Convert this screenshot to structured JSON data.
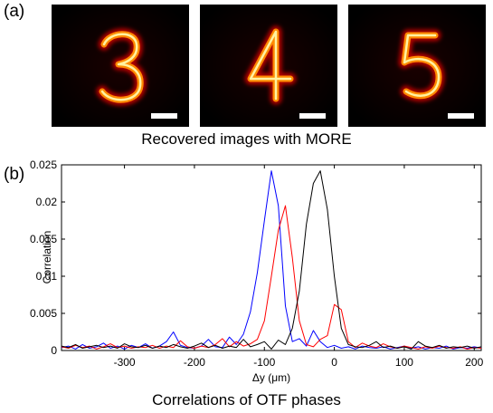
{
  "panel_a": {
    "label": "(a)",
    "images": [
      {
        "digit": "3",
        "scale_bar": true
      },
      {
        "digit": "4",
        "scale_bar": true
      },
      {
        "digit": "5",
        "scale_bar": true
      }
    ],
    "caption": "Recovered images with MORE"
  },
  "panel_b": {
    "label": "(b)",
    "caption": "Correlations of OTF phases"
  },
  "chart_data": {
    "type": "line",
    "xlabel": "Δy (μm)",
    "ylabel": "Correlation",
    "xlim": [
      -390,
      210
    ],
    "ylim": [
      0,
      0.025
    ],
    "x_ticks": [
      -300,
      -200,
      -100,
      0,
      100,
      200
    ],
    "y_ticks": [
      0,
      0.005,
      0.01,
      0.015,
      0.02,
      0.025
    ],
    "y_tick_labels": [
      "0",
      "0.005",
      "0.01",
      "0.015",
      "0.02",
      "0.025"
    ],
    "grid": false,
    "series": [
      {
        "color": "#0000ff",
        "x": [
          -390,
          -380,
          -370,
          -360,
          -350,
          -340,
          -330,
          -320,
          -310,
          -300,
          -290,
          -280,
          -270,
          -260,
          -250,
          -240,
          -230,
          -220,
          -210,
          -200,
          -190,
          -180,
          -170,
          -160,
          -150,
          -140,
          -130,
          -120,
          -110,
          -100,
          -90,
          -80,
          -70,
          -60,
          -50,
          -40,
          -30,
          -20,
          -10,
          0,
          10,
          20,
          30,
          40,
          50,
          60,
          70,
          80,
          90,
          100,
          110,
          120,
          130,
          140,
          150,
          160,
          170,
          180,
          190,
          200,
          210
        ],
        "y": [
          0.0004,
          0.0006,
          0.0002,
          0.0008,
          0.0003,
          0.0005,
          0.001,
          0.0003,
          0.0006,
          0.0002,
          0.0007,
          0.0004,
          0.0009,
          0.0003,
          0.0006,
          0.0012,
          0.0025,
          0.0007,
          0.0004,
          0.0003,
          0.0006,
          0.0015,
          0.0005,
          0.0004,
          0.0018,
          0.0008,
          0.0022,
          0.0052,
          0.0105,
          0.0175,
          0.0242,
          0.0195,
          0.006,
          0.0012,
          0.0016,
          0.0006,
          0.0027,
          0.0012,
          0.0004,
          0.0007,
          0.0003,
          0.0005,
          0.0002,
          0.0006,
          0.0004,
          0.0003,
          0.0005,
          0.0002,
          0.0004,
          0.0006,
          0.0003,
          0.0005,
          0.0002,
          0.0004,
          0.0003,
          0.0006,
          0.0002,
          0.0004,
          0.0003,
          0.0005,
          0.0003
        ]
      },
      {
        "color": "#ff0000",
        "x": [
          -390,
          -380,
          -370,
          -360,
          -350,
          -340,
          -330,
          -320,
          -310,
          -300,
          -290,
          -280,
          -270,
          -260,
          -250,
          -240,
          -230,
          -220,
          -210,
          -200,
          -190,
          -180,
          -170,
          -160,
          -150,
          -140,
          -130,
          -120,
          -110,
          -100,
          -90,
          -80,
          -70,
          -60,
          -50,
          -40,
          -30,
          -20,
          -10,
          0,
          10,
          20,
          30,
          40,
          50,
          60,
          70,
          80,
          90,
          100,
          110,
          120,
          130,
          140,
          150,
          160,
          170,
          180,
          190,
          200,
          210
        ],
        "y": [
          0.0005,
          0.0003,
          0.0007,
          0.0004,
          0.0006,
          0.0002,
          0.0005,
          0.0009,
          0.0004,
          0.0006,
          0.0003,
          0.0005,
          0.0004,
          0.0007,
          0.0003,
          0.0006,
          0.0004,
          0.0013,
          0.0005,
          0.0003,
          0.0006,
          0.0004,
          0.0008,
          0.0016,
          0.0005,
          0.0012,
          0.0006,
          0.0009,
          0.0015,
          0.004,
          0.01,
          0.0162,
          0.0195,
          0.0125,
          0.004,
          0.0008,
          0.0005,
          0.0015,
          0.002,
          0.0062,
          0.0055,
          0.0012,
          0.0004,
          0.001,
          0.0006,
          0.0004,
          0.0009,
          0.0005,
          0.0003,
          0.0006,
          0.0004,
          0.0002,
          0.0005,
          0.0003,
          0.0006,
          0.0004,
          0.0003,
          0.0005,
          0.0002,
          0.0004,
          0.0003
        ]
      },
      {
        "color": "#000000",
        "x": [
          -390,
          -380,
          -370,
          -360,
          -350,
          -340,
          -330,
          -320,
          -310,
          -300,
          -290,
          -280,
          -270,
          -260,
          -250,
          -240,
          -230,
          -220,
          -210,
          -200,
          -190,
          -180,
          -170,
          -160,
          -150,
          -140,
          -130,
          -120,
          -110,
          -100,
          -90,
          -80,
          -70,
          -60,
          -50,
          -40,
          -30,
          -20,
          -10,
          0,
          10,
          20,
          30,
          40,
          50,
          60,
          70,
          80,
          90,
          100,
          110,
          120,
          130,
          140,
          150,
          160,
          170,
          180,
          190,
          200,
          210
        ],
        "y": [
          0.0006,
          0.0004,
          0.0008,
          0.0003,
          0.0005,
          0.0007,
          0.0004,
          0.0006,
          0.0003,
          0.0009,
          0.0005,
          0.0004,
          0.0007,
          0.0003,
          0.0006,
          0.0004,
          0.0008,
          0.0005,
          0.0003,
          0.0006,
          0.001,
          0.0004,
          0.0007,
          0.0003,
          0.0006,
          0.0004,
          0.0015,
          0.0005,
          0.0008,
          0.0012,
          0.0002,
          0.0014,
          0.0008,
          0.003,
          0.008,
          0.017,
          0.0225,
          0.0242,
          0.019,
          0.01,
          0.003,
          0.0008,
          0.0005,
          0.0004,
          0.0007,
          0.0012,
          0.0004,
          0.0006,
          0.0003,
          0.0005,
          0.0002,
          0.0012,
          0.0006,
          0.0004,
          0.0007,
          0.0003,
          0.0005,
          0.0004,
          0.0006,
          0.0003,
          0.0005
        ]
      }
    ]
  }
}
